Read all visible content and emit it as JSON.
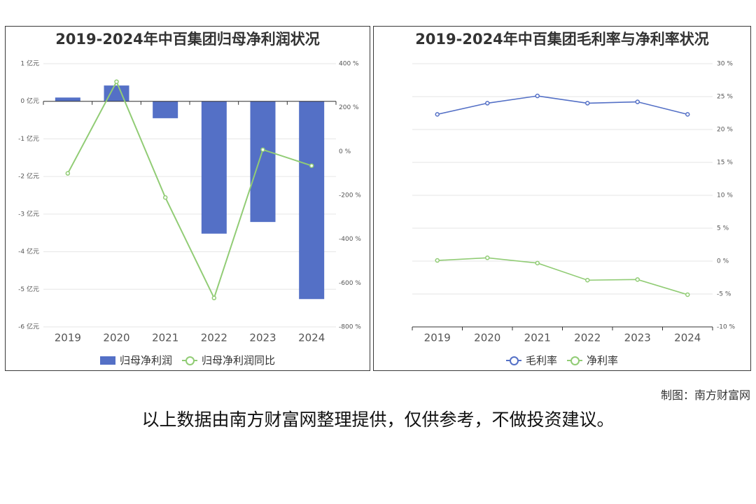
{
  "chart_data": [
    {
      "type": "bar",
      "title": "2019-2024年中百集团归母净利润状况",
      "categories": [
        "2019",
        "2020",
        "2021",
        "2022",
        "2023",
        "2024"
      ],
      "series": [
        {
          "name": "归母净利润",
          "type": "bar",
          "axis": "left",
          "color": "#5470c6",
          "values": [
            0.1,
            0.42,
            -0.45,
            -3.52,
            -3.21,
            -5.26
          ]
        },
        {
          "name": "归母净利润同比",
          "type": "line",
          "axis": "right",
          "color": "#91cc75",
          "values": [
            -100,
            318,
            -210,
            -668,
            8,
            -65
          ]
        }
      ],
      "y_left": {
        "min": -6,
        "max": 1,
        "step": 1,
        "ticks": [
          "1 亿元",
          "0 亿元",
          "-1 亿元",
          "-2 亿元",
          "-3 亿元",
          "-4 亿元",
          "-5 亿元",
          "-6 亿元"
        ]
      },
      "y_right": {
        "min": -800,
        "max": 400,
        "step": 200,
        "ticks": [
          "400 %",
          "200 %",
          "0 %",
          "-200 %",
          "-400 %",
          "-600 %",
          "-800 %"
        ]
      },
      "legend": "bottom-center"
    },
    {
      "type": "line",
      "title": "2019-2024年中百集团毛利率与净利率状况",
      "categories": [
        "2019",
        "2020",
        "2021",
        "2022",
        "2023",
        "2024"
      ],
      "series": [
        {
          "name": "毛利率",
          "color": "#5470c6",
          "values": [
            22.3,
            24.0,
            25.1,
            24.0,
            24.2,
            22.3
          ]
        },
        {
          "name": "净利率",
          "color": "#91cc75",
          "values": [
            0.1,
            0.5,
            -0.3,
            -2.9,
            -2.8,
            -5.1
          ]
        }
      ],
      "y_right": {
        "min": -10,
        "max": 30,
        "step": 5,
        "ticks": [
          "30 %",
          "25 %",
          "20 %",
          "15 %",
          "10 %",
          "5 %",
          "0 %",
          "-5 %",
          "-10 %"
        ]
      },
      "legend": "bottom-center"
    }
  ],
  "credit": "制图：南方财富网",
  "disclaimer": "以上数据由南方财富网整理提供，仅供参考，不做投资建议。"
}
